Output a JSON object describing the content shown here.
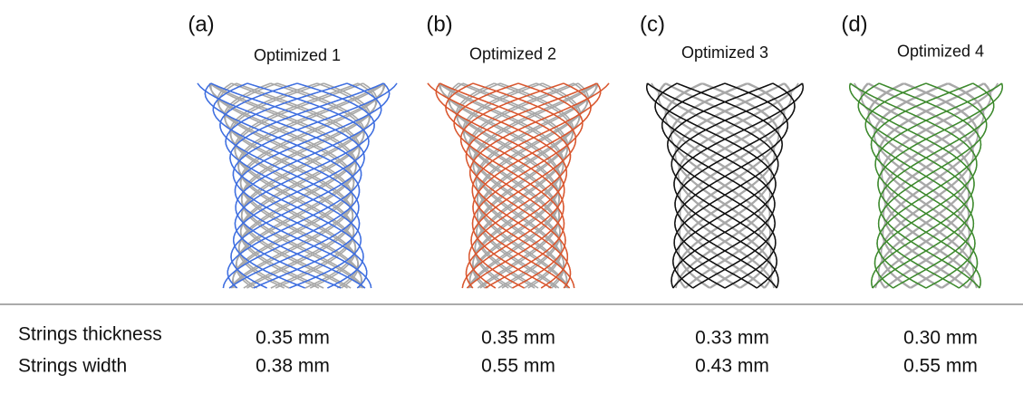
{
  "panels": [
    {
      "label": "(a)",
      "title": "Optimized 1",
      "thickness": "0.35 mm",
      "width": "0.38 mm"
    },
    {
      "label": "(b)",
      "title": "Optimized 2",
      "thickness": "0.35 mm",
      "width": "0.55 mm"
    },
    {
      "label": "(c)",
      "title": "Optimized 3",
      "thickness": "0.33 mm",
      "width": "0.43 mm"
    },
    {
      "label": "(d)",
      "title": "Optimized 4",
      "thickness": "0.30 mm",
      "width": "0.55 mm"
    }
  ],
  "row_labels": [
    "Strings thickness",
    "Strings width"
  ]
}
